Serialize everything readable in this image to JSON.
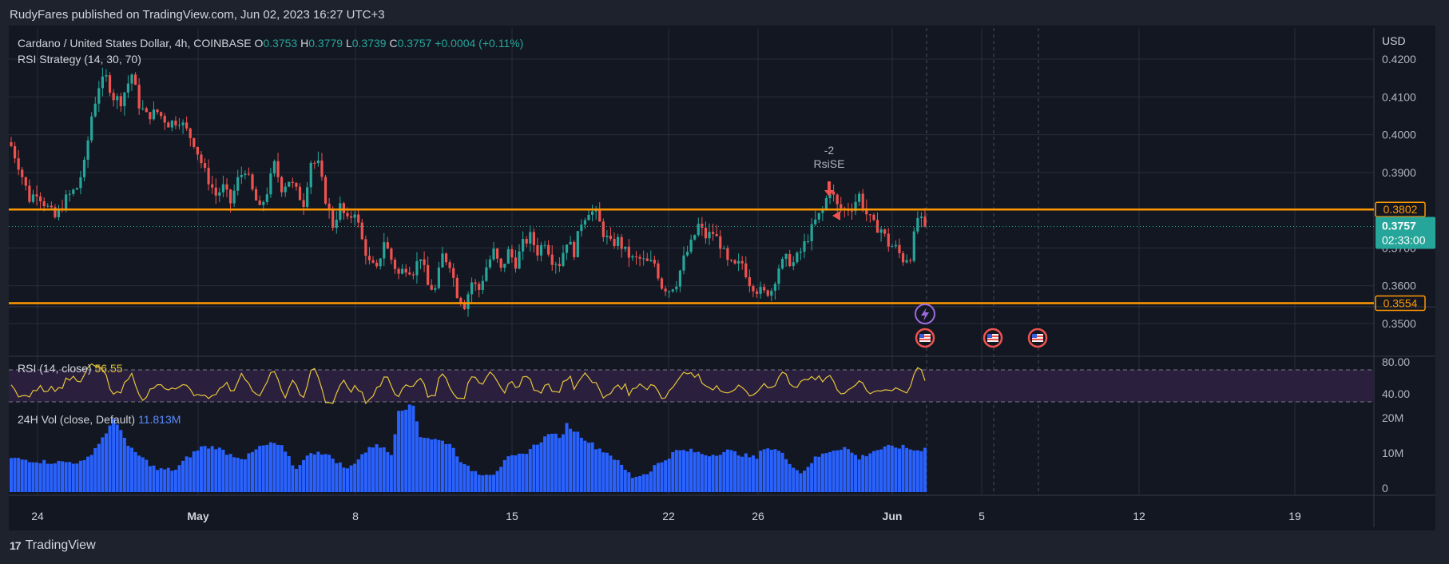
{
  "header": {
    "published_caption": "RudyFares published on TradingView.com, Jun 02, 2023 16:27 UTC+3"
  },
  "footer": {
    "logo_text": "TradingView",
    "logo_icon": "tradingview-logo-icon"
  },
  "legend": {
    "symbol": "Cardano / United States Dollar, 4h, COINBASE",
    "ohlc": [
      {
        "label": "O",
        "value": "0.3753"
      },
      {
        "label": "H",
        "value": "0.3779"
      },
      {
        "label": "L",
        "value": "0.3739"
      },
      {
        "label": "C",
        "value": "0.3757"
      }
    ],
    "change": "+0.0004 (+0.11%)",
    "strategy": "RSI Strategy (14, 30, 70)"
  },
  "price_axis": {
    "unit": "USD",
    "ticks": [
      "0.4200",
      "0.4100",
      "0.4000",
      "0.3900",
      "0.3700",
      "0.3600",
      "0.3500"
    ],
    "last_price": "0.3757",
    "countdown": "02:33:00",
    "levels": [
      {
        "label": "0.3802",
        "value": 0.3802
      },
      {
        "label": "0.3554",
        "value": 0.3554
      }
    ]
  },
  "trade_marker": {
    "quantity": "-2",
    "name": "RsiSE"
  },
  "rsi_pane": {
    "title": "RSI (14, close)",
    "value": "56.55",
    "ticks": [
      "80.00",
      "40.00"
    ]
  },
  "vol_pane": {
    "title": "24H Vol (close, Default)",
    "value": "11.813M",
    "ticks": [
      "20M",
      "10M",
      "0"
    ]
  },
  "time_axis": {
    "labels": [
      "24",
      "May",
      "8",
      "15",
      "22",
      "26",
      "Jun",
      "5",
      "12",
      "19"
    ]
  },
  "event_icons": {
    "flag_icon": "us-flag-event-icon",
    "flash_icon": "lightning-event-icon"
  },
  "colors": {
    "background": "#131722",
    "up": "#26a69a",
    "down": "#ef5350",
    "level_line": "#ff9800",
    "rsi_line": "#e6c63a",
    "rsi_band": "#2a1f3d",
    "volume": "#2962ff",
    "price_label": "#26a69a"
  },
  "chart_data": {
    "type": "candlestick",
    "title": "Cardano / United States Dollar, 4h, COINBASE",
    "ylabel": "USD",
    "ylim": [
      0.346,
      0.424
    ],
    "x_labels": [
      "24",
      "May",
      "8",
      "15",
      "22",
      "26",
      "Jun",
      "5",
      "12",
      "19"
    ],
    "anchors": [
      [
        0,
        0.397
      ],
      [
        2,
        0.392
      ],
      [
        5,
        0.383
      ],
      [
        7,
        0.385
      ],
      [
        9,
        0.382
      ],
      [
        12,
        0.378
      ],
      [
        15,
        0.383
      ],
      [
        18,
        0.386
      ],
      [
        20,
        0.392
      ],
      [
        22,
        0.405
      ],
      [
        24,
        0.413
      ],
      [
        26,
        0.415
      ],
      [
        28,
        0.41
      ],
      [
        30,
        0.409
      ],
      [
        33,
        0.416
      ],
      [
        35,
        0.408
      ],
      [
        37,
        0.405
      ],
      [
        40,
        0.406
      ],
      [
        43,
        0.403
      ],
      [
        46,
        0.404
      ],
      [
        48,
        0.401
      ],
      [
        50,
        0.398
      ],
      [
        53,
        0.39
      ],
      [
        56,
        0.384
      ],
      [
        58,
        0.386
      ],
      [
        60,
        0.382
      ],
      [
        62,
        0.388
      ],
      [
        64,
        0.391
      ],
      [
        66,
        0.385
      ],
      [
        68,
        0.38
      ],
      [
        70,
        0.385
      ],
      [
        72,
        0.392
      ],
      [
        74,
        0.386
      ],
      [
        76,
        0.388
      ],
      [
        78,
        0.385
      ],
      [
        80,
        0.382
      ],
      [
        82,
        0.393
      ],
      [
        84,
        0.392
      ],
      [
        86,
        0.383
      ],
      [
        88,
        0.376
      ],
      [
        90,
        0.381
      ],
      [
        92,
        0.377
      ],
      [
        94,
        0.38
      ],
      [
        96,
        0.372
      ],
      [
        98,
        0.366
      ],
      [
        100,
        0.364
      ],
      [
        102,
        0.372
      ],
      [
        104,
        0.367
      ],
      [
        106,
        0.363
      ],
      [
        108,
        0.365
      ],
      [
        110,
        0.364
      ],
      [
        112,
        0.368
      ],
      [
        114,
        0.36
      ],
      [
        116,
        0.359
      ],
      [
        118,
        0.368
      ],
      [
        120,
        0.366
      ],
      [
        122,
        0.358
      ],
      [
        124,
        0.355
      ],
      [
        126,
        0.361
      ],
      [
        128,
        0.359
      ],
      [
        130,
        0.365
      ],
      [
        132,
        0.369
      ],
      [
        134,
        0.364
      ],
      [
        136,
        0.369
      ],
      [
        138,
        0.366
      ],
      [
        140,
        0.371
      ],
      [
        142,
        0.373
      ],
      [
        144,
        0.369
      ],
      [
        146,
        0.372
      ],
      [
        148,
        0.367
      ],
      [
        150,
        0.366
      ],
      [
        152,
        0.372
      ],
      [
        154,
        0.369
      ],
      [
        156,
        0.377
      ],
      [
        158,
        0.38
      ],
      [
        160,
        0.379
      ],
      [
        162,
        0.374
      ],
      [
        164,
        0.371
      ],
      [
        166,
        0.372
      ],
      [
        168,
        0.369
      ],
      [
        170,
        0.367
      ],
      [
        172,
        0.367
      ],
      [
        174,
        0.366
      ],
      [
        176,
        0.366
      ],
      [
        178,
        0.36
      ],
      [
        180,
        0.359
      ],
      [
        182,
        0.361
      ],
      [
        184,
        0.367
      ],
      [
        186,
        0.371
      ],
      [
        188,
        0.376
      ],
      [
        190,
        0.373
      ],
      [
        192,
        0.374
      ],
      [
        194,
        0.371
      ],
      [
        196,
        0.366
      ],
      [
        198,
        0.365
      ],
      [
        200,
        0.366
      ],
      [
        202,
        0.361
      ],
      [
        204,
        0.359
      ],
      [
        206,
        0.358
      ],
      [
        208,
        0.359
      ],
      [
        210,
        0.365
      ],
      [
        212,
        0.367
      ],
      [
        214,
        0.366
      ],
      [
        216,
        0.369
      ],
      [
        218,
        0.373
      ],
      [
        220,
        0.377
      ],
      [
        222,
        0.38
      ],
      [
        224,
        0.386
      ],
      [
        226,
        0.381
      ],
      [
        228,
        0.38
      ],
      [
        230,
        0.381
      ],
      [
        232,
        0.384
      ],
      [
        234,
        0.379
      ],
      [
        236,
        0.376
      ],
      [
        238,
        0.375
      ],
      [
        240,
        0.371
      ],
      [
        242,
        0.37
      ],
      [
        244,
        0.367
      ],
      [
        246,
        0.368
      ],
      [
        248,
        0.378
      ],
      [
        250,
        0.3757
      ]
    ],
    "levels": [
      0.3802,
      0.3554
    ],
    "rsi": {
      "ylim": [
        20,
        100
      ],
      "bands": [
        70,
        30
      ],
      "last": 56.55
    },
    "volume": {
      "ylim": [
        0,
        27
      ],
      "unit": "M",
      "anchors": [
        [
          0,
          9
        ],
        [
          10,
          8
        ],
        [
          20,
          8
        ],
        [
          24,
          13
        ],
        [
          28,
          19
        ],
        [
          30,
          17
        ],
        [
          32,
          12
        ],
        [
          36,
          9
        ],
        [
          40,
          6
        ],
        [
          45,
          6
        ],
        [
          48,
          9
        ],
        [
          52,
          12
        ],
        [
          56,
          12
        ],
        [
          60,
          10
        ],
        [
          64,
          9
        ],
        [
          68,
          12
        ],
        [
          72,
          13
        ],
        [
          74,
          12
        ],
        [
          78,
          6
        ],
        [
          80,
          9
        ],
        [
          84,
          11
        ],
        [
          88,
          9
        ],
        [
          92,
          6
        ],
        [
          96,
          10
        ],
        [
          100,
          13
        ],
        [
          104,
          10
        ],
        [
          106,
          22
        ],
        [
          110,
          23
        ],
        [
          112,
          15
        ],
        [
          116,
          14
        ],
        [
          120,
          13
        ],
        [
          124,
          7
        ],
        [
          128,
          5
        ],
        [
          132,
          5
        ],
        [
          136,
          9
        ],
        [
          140,
          10
        ],
        [
          144,
          13
        ],
        [
          148,
          16
        ],
        [
          150,
          14
        ],
        [
          152,
          18
        ],
        [
          156,
          15
        ],
        [
          160,
          12
        ],
        [
          164,
          10
        ],
        [
          168,
          6
        ],
        [
          170,
          4
        ],
        [
          174,
          5
        ],
        [
          176,
          7
        ],
        [
          178,
          8
        ],
        [
          182,
          11
        ],
        [
          186,
          11
        ],
        [
          190,
          10
        ],
        [
          192,
          10
        ],
        [
          196,
          11
        ],
        [
          200,
          10
        ],
        [
          204,
          9
        ],
        [
          206,
          12
        ],
        [
          210,
          11
        ],
        [
          214,
          7
        ],
        [
          216,
          5
        ],
        [
          220,
          9
        ],
        [
          224,
          11
        ],
        [
          228,
          12
        ],
        [
          232,
          9
        ],
        [
          236,
          11
        ],
        [
          240,
          12
        ],
        [
          244,
          12
        ],
        [
          248,
          11
        ],
        [
          250,
          11.813
        ]
      ]
    },
    "event_flags_x": [
      0.638,
      0.685,
      0.716
    ]
  }
}
